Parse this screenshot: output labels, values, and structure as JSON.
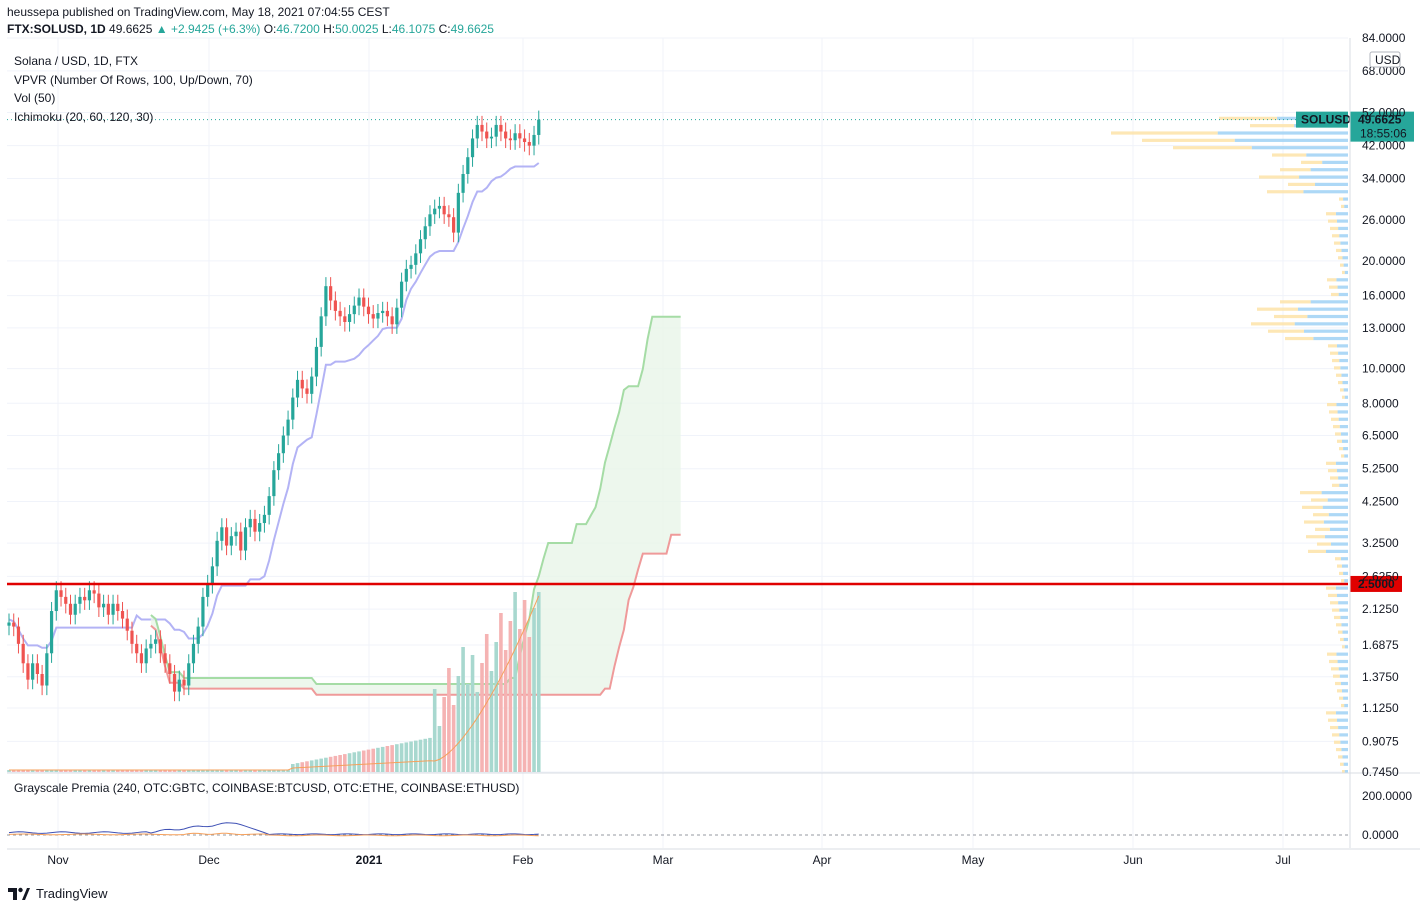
{
  "header": {
    "publisher_line": "heussepa published on TradingView.com, May 18, 2021 07:04:55 CEST",
    "symbol": "FTX:SOLUSD, 1D",
    "last": "49.6625",
    "change": "▲ +2.9425 (+6.3%)",
    "o_label": "O:",
    "o_value": "46.7200",
    "h_label": "H:",
    "h_value": "50.0025",
    "l_label": "L:",
    "l_value": "46.1075",
    "c_label": "C:",
    "c_value": "49.6625"
  },
  "legend": {
    "title": "Solana / USD, 1D, FTX",
    "ind1": "VPVR (Number Of Rows, 100, Up/Down, 70)",
    "ind2": "Vol (50)",
    "ind3": "Ichimoku (20, 60, 120, 30)"
  },
  "oscillator": {
    "legend": "Grayscale Premia (240, OTC:GBTC, COINBASE:BTCUSD, OTC:ETHE, COINBASE:ETHUSD)",
    "ticks": [
      "200.0000",
      "0.0000"
    ]
  },
  "price_axis": {
    "currency": "USD",
    "ticks": [
      "84.0000",
      "68.0000",
      "52.0000",
      "42.0000",
      "34.0000",
      "26.0000",
      "20.0000",
      "16.0000",
      "13.0000",
      "10.0000",
      "8.0000",
      "6.5000",
      "5.2500",
      "4.2500",
      "3.2500",
      "2.6250",
      "2.1250",
      "1.6875",
      "1.3750",
      "1.1250",
      "0.9075",
      "0.7450"
    ],
    "symbol_tag": "SOLUSD",
    "last_price_tag": "49.6625",
    "countdown_tag": "18:55:06",
    "hline_tag": "2.5000"
  },
  "time_axis": [
    "Nov",
    "Dec",
    "2021",
    "Feb",
    "Mar",
    "Apr",
    "May",
    "Jun",
    "Jul"
  ],
  "footer": {
    "brand": "TradingView"
  },
  "colors": {
    "up": "#26a69a",
    "down": "#ef5350",
    "hline": "#e00000",
    "tenkan": "#b3b3f5",
    "senkou_a": "#a5dca5",
    "senkou_b": "#ef9a9a",
    "vp_up": "#9fd1f5",
    "vp_down": "#fde3a8",
    "vol_ma": "#f5a05b",
    "osc_btc": "#3f51b5",
    "osc_eth": "#f5a05b"
  },
  "chart_data": {
    "type": "candlestick",
    "scale": "log",
    "ylim": [
      0.745,
      84
    ],
    "horizontal_line": 2.5,
    "last_price": 49.6625,
    "closes": [
      1.95,
      1.9,
      1.7,
      1.5,
      1.35,
      1.5,
      1.4,
      1.3,
      1.6,
      2.1,
      2.4,
      2.3,
      2.2,
      2.05,
      2.2,
      2.3,
      2.25,
      2.4,
      2.35,
      2.15,
      2.2,
      2.05,
      2.2,
      2.1,
      2.0,
      1.85,
      1.7,
      1.6,
      1.5,
      1.65,
      1.7,
      1.75,
      1.6,
      1.5,
      1.4,
      1.25,
      1.35,
      1.3,
      1.5,
      1.7,
      1.9,
      2.3,
      2.5,
      2.8,
      3.3,
      3.6,
      3.2,
      3.4,
      3.5,
      3.1,
      3.6,
      3.8,
      3.5,
      3.7,
      3.9,
      4.4,
      5.2,
      5.8,
      6.5,
      7.2,
      8.3,
      9.3,
      8.8,
      8.5,
      9.5,
      11.5,
      14.0,
      17.0,
      15.5,
      14.5,
      14.0,
      13.5,
      14.2,
      15.0,
      15.8,
      14.9,
      14.2,
      13.8,
      14.3,
      14.5,
      14.0,
      13.3,
      14.8,
      17.5,
      19.0,
      19.5,
      21.0,
      23.0,
      25.0,
      27.0,
      28.0,
      28.5,
      27.0,
      26.5,
      24.0,
      31.0,
      35.0,
      39.0,
      44.0,
      48.0,
      46.0,
      44.0,
      44.5,
      48.0,
      46.0,
      44.0,
      43.5,
      45.5,
      44.0,
      43.0,
      42.0,
      45.0,
      49.66
    ],
    "volume_ma_label": "Vol (50)",
    "ichimoku": {
      "conversion": 20,
      "base": 60,
      "lagging": 120,
      "displacement": 30
    }
  }
}
